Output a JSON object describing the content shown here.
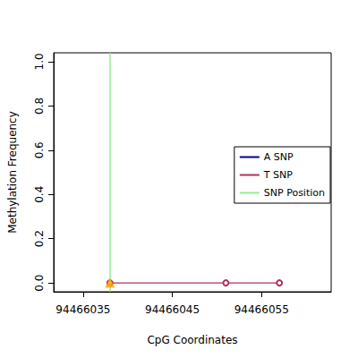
{
  "chart_data": {
    "type": "line",
    "x_label": "CpG Coordinates",
    "y_label": "Methylation Frequency",
    "xlim": [
      94466031.7,
      94466062.8
    ],
    "xticks": [
      94466035,
      94466045,
      94466055
    ],
    "ylim": [
      -0.04,
      1.04
    ],
    "yticks": [
      {
        "value": 0,
        "label": "0.0"
      },
      0.2,
      0.4,
      0.6,
      0.8,
      {
        "value": 1,
        "label": "1.0"
      }
    ],
    "grid": false,
    "legend": "right",
    "series": [
      {
        "name": "A SNP",
        "type": "line",
        "color": "#00008b",
        "x": [],
        "values": []
      },
      {
        "name": "T SNP",
        "type": "line",
        "color": "#b03060",
        "marker": "open_circle",
        "x": [
          94466038,
          94466051,
          94466057
        ],
        "values": [
          0,
          0,
          0
        ]
      },
      {
        "name": "SNP Position",
        "type": "vline",
        "color": "#90ee90",
        "x": [
          94466038
        ]
      },
      {
        "type": "scatter",
        "color": "#ffa500",
        "marker": "triangle",
        "x": [
          94466038
        ],
        "values": [
          0
        ]
      }
    ]
  }
}
